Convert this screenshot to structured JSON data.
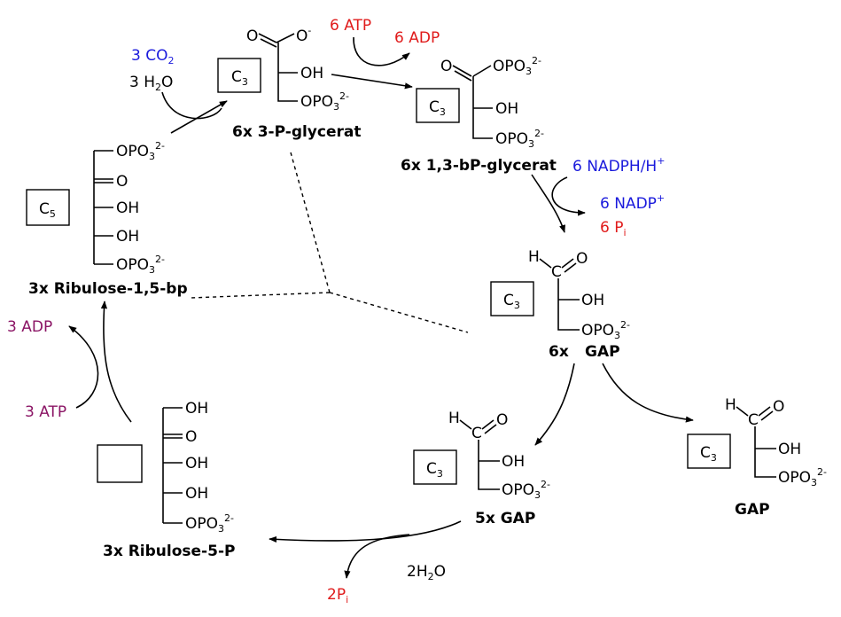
{
  "labels": {
    "co2": "3 CO",
    "co2_sub": "2",
    "h2o_3": "3 H",
    "h2o_3_sub": "2",
    "h2o_3_tail": "O",
    "atp6": "6 ATP",
    "adp6": "6 ADP",
    "pg": "6x 3-P-glycerat",
    "bpg": "6x 1,3-bP-glycerat",
    "nadph": "6 NADPH/H",
    "nadph_sup": "+",
    "nadp": "6 NADP",
    "nadp_sup": "+",
    "pi6": "6 P",
    "pi6_sub": "i",
    "gap6": "6x",
    "gap6_name": "GAP",
    "gap5": "5x GAP",
    "gap1": "GAP",
    "rubp": "3x Ribulose-1,5-bp",
    "ru5p": "3x Ribulose-5-P",
    "adp3": "3 ADP",
    "atp3": "3 ATP",
    "h2o2": "2H",
    "h2o2_sub": "2",
    "h2o2_tail": "O",
    "pi2": "2P",
    "pi2_sub": "i"
  },
  "boxes": {
    "c3": "C",
    "c3_sub": "3",
    "c5": "C",
    "c5_sub": "5",
    "empty": ""
  },
  "groups": {
    "o": "O",
    "o_minus": "O",
    "minus": "-",
    "oh": "OH",
    "h": "H",
    "c": "C",
    "opo3": "OPO",
    "opo3_sub": "3",
    "opo3_sup": "2-"
  }
}
